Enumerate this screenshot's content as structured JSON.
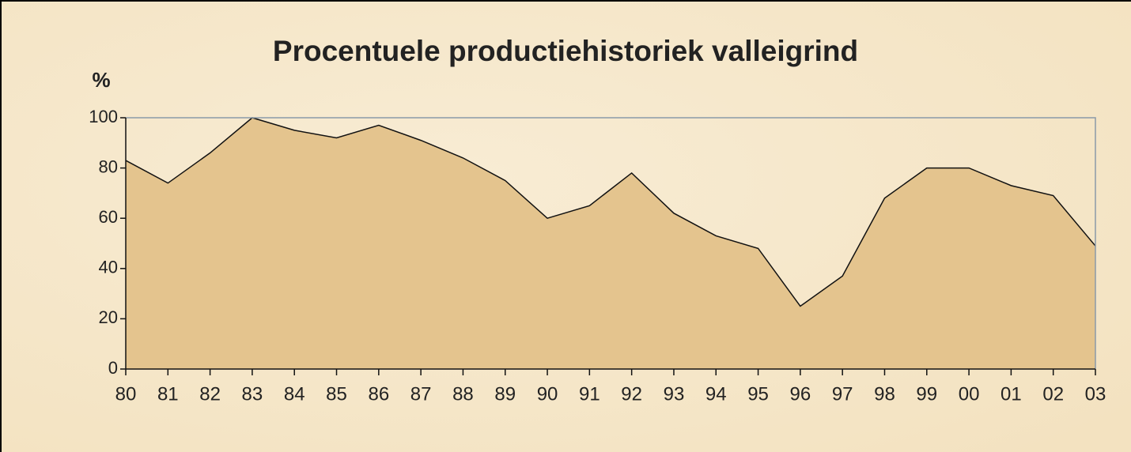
{
  "chart_data": {
    "type": "area",
    "title": "Procentuele productiehistoriek valleigrind",
    "y_label": "%",
    "categories": [
      "80",
      "81",
      "82",
      "83",
      "84",
      "85",
      "86",
      "87",
      "88",
      "89",
      "90",
      "91",
      "92",
      "93",
      "94",
      "95",
      "96",
      "97",
      "98",
      "99",
      "00",
      "01",
      "02",
      "03"
    ],
    "values": [
      83,
      74,
      86,
      100,
      95,
      92,
      97,
      91,
      84,
      75,
      60,
      65,
      78,
      62,
      53,
      48,
      25,
      37,
      68,
      80,
      80,
      73,
      69,
      49
    ],
    "color": "#e4c48e",
    "ylim": [
      0,
      100
    ],
    "yticks": [
      0,
      20,
      40,
      60,
      80,
      100
    ]
  }
}
